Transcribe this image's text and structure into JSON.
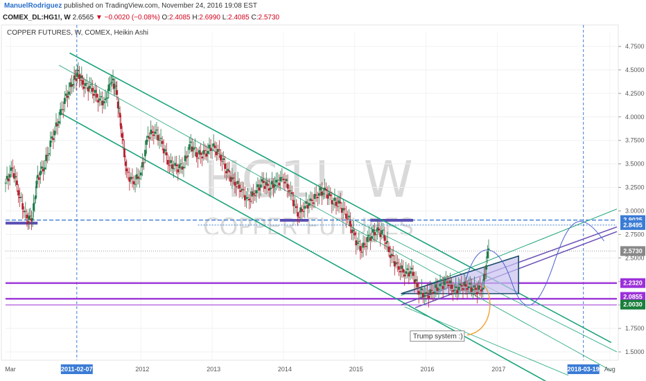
{
  "header": {
    "author": "ManuelRodriguez",
    "published": "published on TradingView.com, November 24, 2016 19:08 EST",
    "symbol": "COMEX_DL:HG1!, W",
    "price": "2.6565",
    "change": "−0.0020 (−0.08%)",
    "o_label": "O:",
    "o_value": "2.4085",
    "h_label": "H:",
    "h_value": "2.6990",
    "l_label": "L:",
    "l_value": "2.4085",
    "c_label": "C:",
    "c_value": "2.5730"
  },
  "chart_data": {
    "type": "candlestick",
    "title": "COPPER FUTURES, W, COMEX, Heikin Ashi",
    "watermark_symbol": "HG1!, W",
    "watermark_name": "COPPER FUTURES",
    "y_ticks": [
      "4.7500",
      "4.5000",
      "4.2500",
      "4.0000",
      "3.7500",
      "3.5000",
      "3.2500",
      "3.0000",
      "2.7500",
      "2.5000",
      "2.2500",
      "2.0000",
      "1.7500",
      "1.5000"
    ],
    "x_ticks": [
      "Mar",
      "2012",
      "2013",
      "2014",
      "2015",
      "2016",
      "2017",
      "Aug"
    ],
    "x_tick_values": [
      2010.17,
      2012.0,
      2013.0,
      2014.0,
      2015.0,
      2016.0,
      2017.0,
      2018.58
    ],
    "x_marker_labels": [
      "2011-02-07",
      "2018-03-19"
    ],
    "x_marker_values": [
      2011.1,
      2018.21
    ],
    "x_partial_label": "20",
    "price_tags": [
      {
        "label": "2.9025",
        "value": 2.9025,
        "color": "#3a7bd5"
      },
      {
        "label": "2.8495",
        "value": 2.8495,
        "color": "#3a7bd5"
      },
      {
        "label": "2.5730",
        "value": 2.573,
        "color": "#888888"
      },
      {
        "label": "2.2320",
        "value": 2.232,
        "color": "#9b30d9"
      },
      {
        "label": "2.0855",
        "value": 2.0855,
        "color": "#9b30d9"
      },
      {
        "label": "2.0030",
        "value": 2.003,
        "color": "#1a7f3c"
      }
    ],
    "annotation": "Trump system :)",
    "heikin_ashi_closes": [
      [
        2010.1,
        3.3
      ],
      [
        2010.2,
        3.45
      ],
      [
        2010.3,
        3.15
      ],
      [
        2010.4,
        2.9
      ],
      [
        2010.48,
        2.95
      ],
      [
        2010.55,
        3.35
      ],
      [
        2010.65,
        3.5
      ],
      [
        2010.75,
        3.75
      ],
      [
        2010.85,
        4.0
      ],
      [
        2010.95,
        4.2
      ],
      [
        2011.05,
        4.4
      ],
      [
        2011.12,
        4.45
      ],
      [
        2011.2,
        4.35
      ],
      [
        2011.3,
        4.3
      ],
      [
        2011.4,
        4.2
      ],
      [
        2011.5,
        4.15
      ],
      [
        2011.58,
        4.4
      ],
      [
        2011.65,
        4.3
      ],
      [
        2011.72,
        3.9
      ],
      [
        2011.8,
        3.4
      ],
      [
        2011.9,
        3.3
      ],
      [
        2012.0,
        3.4
      ],
      [
        2012.1,
        3.8
      ],
      [
        2012.2,
        3.85
      ],
      [
        2012.3,
        3.7
      ],
      [
        2012.4,
        3.5
      ],
      [
        2012.5,
        3.45
      ],
      [
        2012.6,
        3.5
      ],
      [
        2012.7,
        3.7
      ],
      [
        2012.8,
        3.6
      ],
      [
        2012.9,
        3.6
      ],
      [
        2013.0,
        3.7
      ],
      [
        2013.1,
        3.6
      ],
      [
        2013.2,
        3.45
      ],
      [
        2013.3,
        3.3
      ],
      [
        2013.4,
        3.25
      ],
      [
        2013.5,
        3.1
      ],
      [
        2013.6,
        3.2
      ],
      [
        2013.7,
        3.3
      ],
      [
        2013.8,
        3.25
      ],
      [
        2013.9,
        3.3
      ],
      [
        2014.0,
        3.35
      ],
      [
        2014.1,
        3.2
      ],
      [
        2014.2,
        2.95
      ],
      [
        2014.3,
        3.05
      ],
      [
        2014.4,
        3.1
      ],
      [
        2014.5,
        3.2
      ],
      [
        2014.6,
        3.2
      ],
      [
        2014.7,
        3.1
      ],
      [
        2014.8,
        3.05
      ],
      [
        2014.9,
        2.95
      ],
      [
        2015.0,
        2.7
      ],
      [
        2015.1,
        2.6
      ],
      [
        2015.2,
        2.7
      ],
      [
        2015.3,
        2.8
      ],
      [
        2015.4,
        2.75
      ],
      [
        2015.5,
        2.55
      ],
      [
        2015.6,
        2.4
      ],
      [
        2015.7,
        2.35
      ],
      [
        2015.8,
        2.35
      ],
      [
        2015.9,
        2.15
      ],
      [
        2016.0,
        2.1
      ],
      [
        2016.1,
        2.15
      ],
      [
        2016.2,
        2.2
      ],
      [
        2016.3,
        2.25
      ],
      [
        2016.4,
        2.15
      ],
      [
        2016.5,
        2.2
      ],
      [
        2016.6,
        2.2
      ],
      [
        2016.7,
        2.15
      ],
      [
        2016.8,
        2.2
      ],
      [
        2016.88,
        2.6
      ]
    ]
  },
  "colors": {
    "channel": "#1aa37a",
    "purple": "#9b30d9",
    "blue_dashed": "#3a7bd5",
    "candle_up": "#1f7a4a",
    "candle_down": "#b5202e",
    "annotation_arrow": "#f0a030",
    "wedge_fill": "#c9c2ef"
  }
}
